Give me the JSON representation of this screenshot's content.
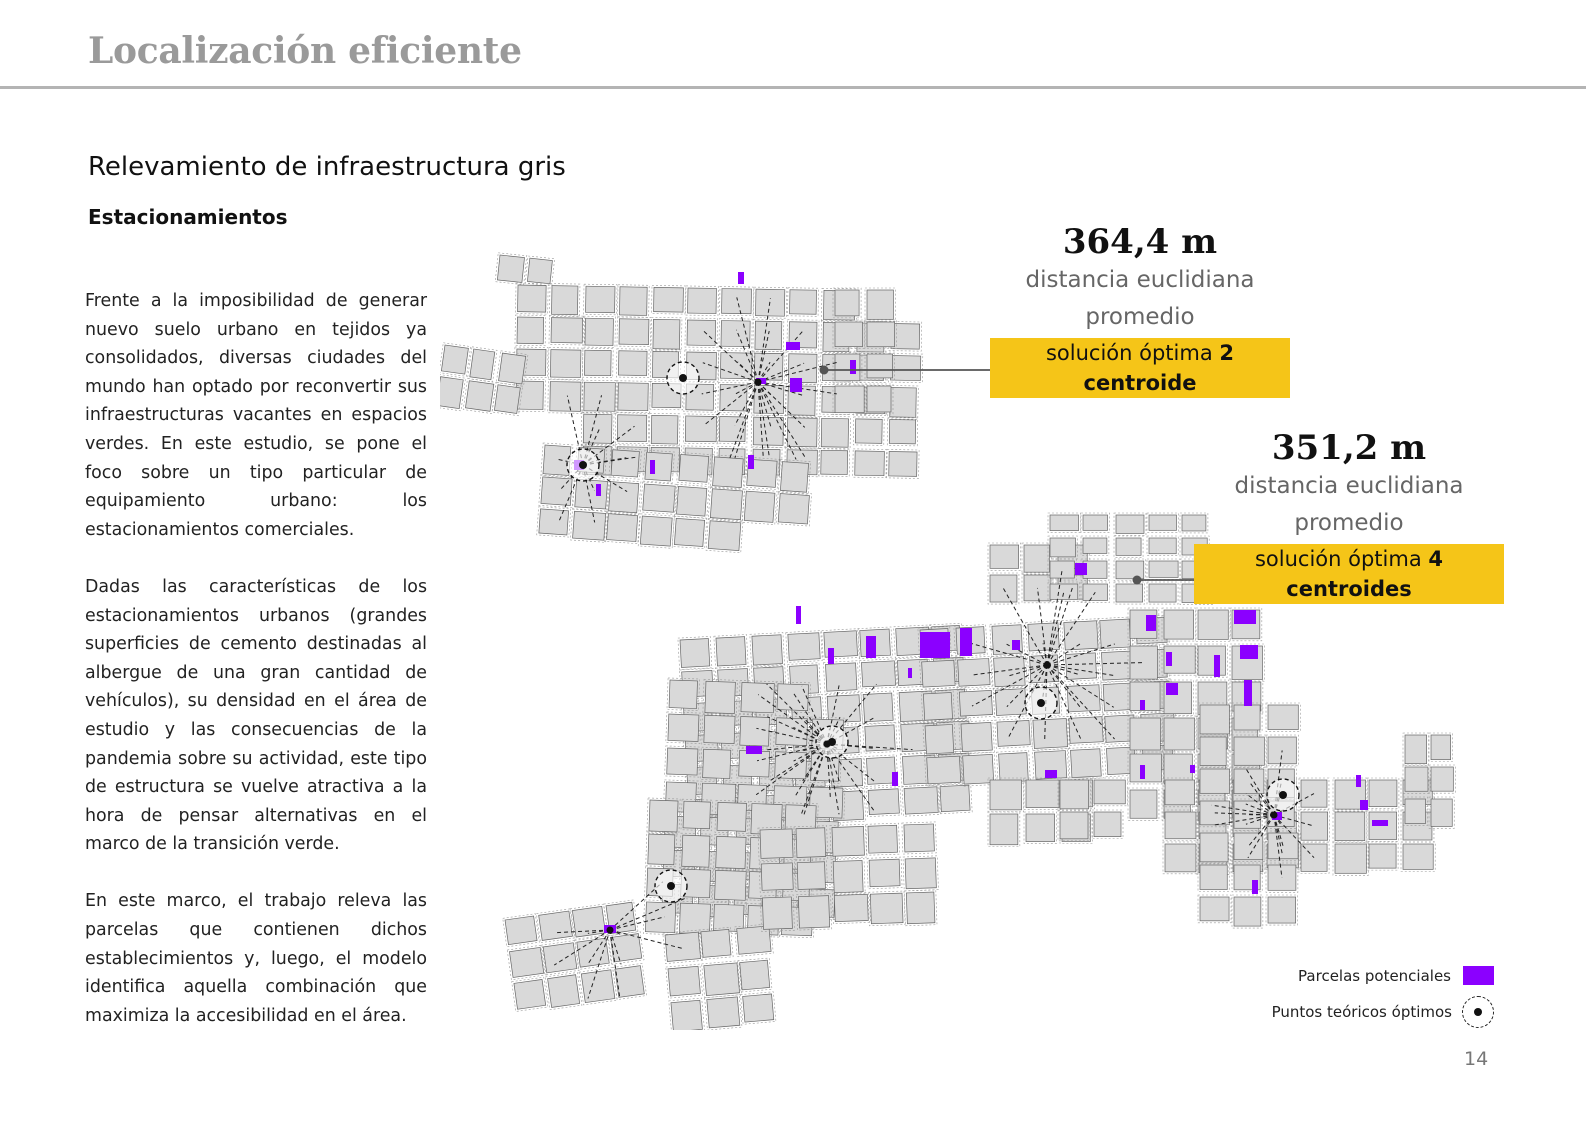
{
  "header": {
    "title": "Localización eficiente"
  },
  "section": {
    "title": "Relevamiento de infraestructura gris",
    "subtitle": "Estacionamientos"
  },
  "body": {
    "p1": "Frente a la imposibilidad de generar nuevo suelo urbano en tejidos ya consolidados, diversas ciudades del mundo han optado por reconvertir sus infraestructuras vacantes en espacios verdes. En este estudio, se pone el foco sobre un tipo particular de equipamiento urbano: los estacionamientos comerciales.",
    "p2": "Dadas las características de los estacionamientos urbanos (grandes superficies de cemento destinadas al albergue de una gran cantidad de vehículos), su densidad en el área de estudio y las consecuencias de la pandemia sobre su actividad, este tipo de estructura se vuelve atractiva a la hora de pensar alternativas en el marco de la transición verde.",
    "p3": "En este marco, el trabajo releva las parcelas que contienen dichos establecimientos y, luego, el modelo identifica aquella combinación que maximiza la accesibilidad en el área."
  },
  "stats": {
    "top": {
      "distance": "364,4 m",
      "desc1": "distancia euclidiana",
      "desc2": "promedio",
      "sol_prefix": "solución óptima ",
      "sol_bold": "2 centroide"
    },
    "bottom": {
      "distance": "351,2 m",
      "desc1": "distancia euclidiana",
      "desc2": "promedio",
      "sol_prefix": "solución óptima ",
      "sol_bold": "4 centroides"
    }
  },
  "legend": {
    "parcels": "Parcelas potenciales",
    "points": "Puntos teóricos óptimos"
  },
  "colors": {
    "parcel": "#8b00ff",
    "block": "#d9d9d9",
    "highlight": "#f5c518"
  },
  "page_number": "14"
}
